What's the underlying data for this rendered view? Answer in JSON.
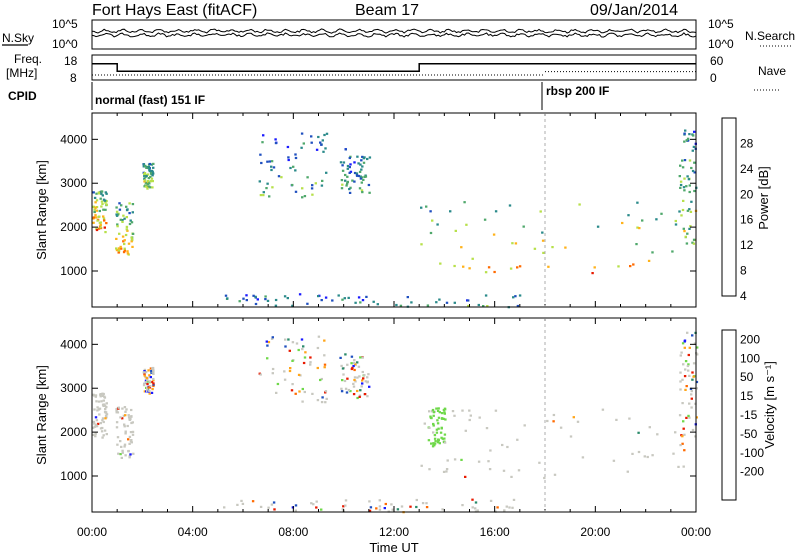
{
  "header": {
    "station": "Fort Hays East (fitACF)",
    "beam": "Beam 17",
    "date": "09/Jan/2014"
  },
  "noise_panel": {
    "left_label": "N.Sky",
    "right_label": "N.Search",
    "left_ticks": [
      "10^5",
      "10^0"
    ],
    "right_ticks": [
      "10^5",
      "10^0"
    ]
  },
  "freq_panel": {
    "left_label_1": "Freq.",
    "left_label_2": "[MHz]",
    "right_label": "Nave",
    "left_ticks": [
      "18",
      "8"
    ],
    "right_ticks": [
      "60",
      "0"
    ],
    "freq_segments": [
      {
        "start_h": 0.0,
        "end_h": 1.0,
        "value": 14.5
      },
      {
        "start_h": 1.0,
        "end_h": 13.0,
        "value": 11.5
      },
      {
        "start_h": 13.0,
        "end_h": 24.0,
        "value": 14.5
      }
    ],
    "nave_segments": [
      {
        "start_h": 0.0,
        "end_h": 18.0,
        "value": 12
      },
      {
        "start_h": 18.0,
        "end_h": 24.0,
        "value": 20
      }
    ]
  },
  "cpid_panel": {
    "label": "CPID",
    "mode_1": "normal (fast) 151 IF",
    "mode_2": "rbsp 200 IF",
    "switch_label": "rbsp 200 IF"
  },
  "power_panel": {
    "ylabel": "Slant Range [km]",
    "colorbar_label": "Power [dB]",
    "colorbar_ticks": [
      "28",
      "24",
      "20",
      "16",
      "12",
      "8",
      "4"
    ]
  },
  "velocity_panel": {
    "ylabel": "Slant Range [km]",
    "colorbar_label": "Velocity [m s⁻¹]",
    "colorbar_ticks": [
      "200",
      "100",
      "50",
      "15",
      "-15",
      "-50",
      "-100",
      "-200"
    ]
  },
  "xaxis": {
    "label": "Time UT",
    "ticks": [
      "00:00",
      "04:00",
      "08:00",
      "12:00",
      "16:00",
      "20:00",
      "00:00"
    ]
  },
  "chart_data": [
    {
      "type": "heatmap",
      "title": "Power [dB]",
      "xlabel": "Time UT",
      "ylabel": "Slant Range [km]",
      "xlim_hours": [
        0,
        24
      ],
      "ylim_km": [
        180,
        4600
      ],
      "yticks": [
        1000,
        2000,
        3000,
        4000
      ],
      "clim": [
        0,
        32
      ],
      "colors": [
        "#1a1aff",
        "#1f4fbf",
        "#2a8a8a",
        "#4fa86b",
        "#b7e04a",
        "#ffb21a",
        "#ff6a00",
        "#e81a00"
      ],
      "echo_regions": [
        {
          "t0": 0.0,
          "t1": 0.55,
          "r0": 1900,
          "r1": 2900,
          "level": 18
        },
        {
          "t0": 0.9,
          "t1": 1.6,
          "r0": 1400,
          "r1": 2600,
          "level": 16
        },
        {
          "t0": 2.0,
          "t1": 2.4,
          "r0": 2900,
          "r1": 3500,
          "level": 12
        },
        {
          "t0": 6.6,
          "t1": 9.3,
          "r0": 2700,
          "r1": 4200,
          "level": 9
        },
        {
          "t0": 9.8,
          "t1": 11.0,
          "r0": 2800,
          "r1": 3800,
          "level": 8
        },
        {
          "t0": 13.0,
          "t1": 23.5,
          "r0": 900,
          "r1": 2600,
          "level": 17
        },
        {
          "t0": 23.3,
          "t1": 24.0,
          "r0": 1600,
          "r1": 4300,
          "level": 12
        },
        {
          "t0": 5.0,
          "t1": 17.0,
          "r0": 200,
          "r1": 500,
          "level": 8
        }
      ]
    },
    {
      "type": "heatmap",
      "title": "Velocity",
      "xlabel": "Time UT",
      "ylabel": "Slant Range [km]",
      "xlim_hours": [
        0,
        24
      ],
      "ylim_km": [
        180,
        4600
      ],
      "yticks": [
        1000,
        2000,
        3000,
        4000
      ],
      "clim": [
        -250,
        250
      ],
      "colors": [
        "#e81a00",
        "#ff6a00",
        "#ffa51a",
        "#c8c8c0",
        "#6fd84a",
        "#2a8a6a",
        "#1f4fbf",
        "#1a1aff"
      ],
      "echo_regions": [
        {
          "t0": 0.0,
          "t1": 0.55,
          "r0": 1900,
          "r1": 2900,
          "class": "gray"
        },
        {
          "t0": 0.9,
          "t1": 1.6,
          "r0": 1400,
          "r1": 2600,
          "class": "gray"
        },
        {
          "t0": 2.0,
          "t1": 2.4,
          "r0": 2900,
          "r1": 3500,
          "class": "mixed"
        },
        {
          "t0": 6.6,
          "t1": 9.3,
          "r0": 2700,
          "r1": 4200,
          "class": "mixed"
        },
        {
          "t0": 9.8,
          "t1": 11.0,
          "r0": 2800,
          "r1": 3800,
          "class": "mixed"
        },
        {
          "t0": 13.0,
          "t1": 23.5,
          "r0": 900,
          "r1": 2600,
          "class": "gray"
        },
        {
          "t0": 13.3,
          "t1": 14.0,
          "r0": 1700,
          "r1": 2600,
          "class": "green"
        },
        {
          "t0": 23.3,
          "t1": 24.0,
          "r0": 1600,
          "r1": 4300,
          "class": "mixed"
        },
        {
          "t0": 5.0,
          "t1": 17.0,
          "r0": 200,
          "r1": 500,
          "class": "mixed"
        }
      ]
    }
  ]
}
